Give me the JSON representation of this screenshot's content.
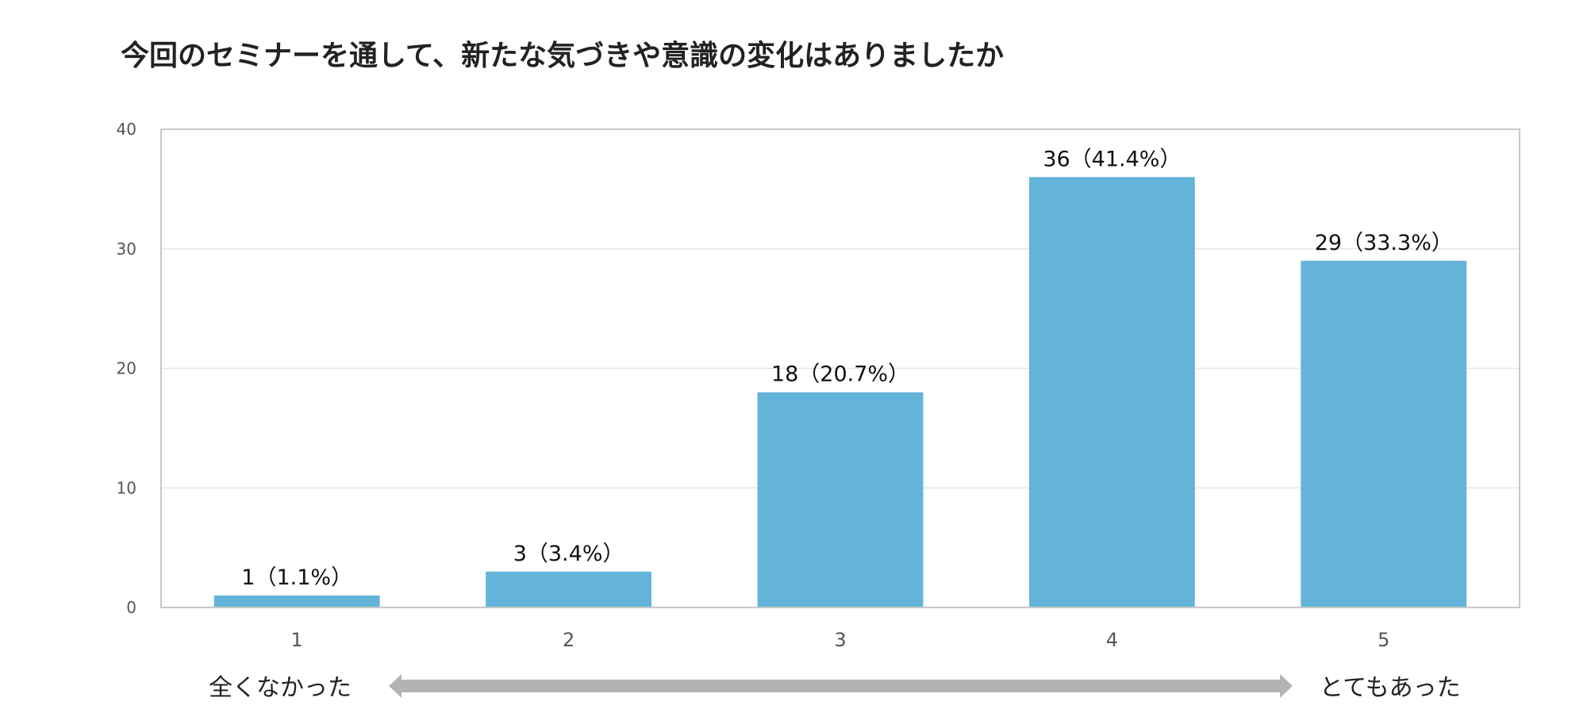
{
  "chart_data": {
    "type": "bar",
    "title": "今回のセミナーを通して、新たな気づきや意識の変化はありましたか",
    "categories": [
      "1",
      "2",
      "3",
      "4",
      "5"
    ],
    "values": [
      1,
      3,
      18,
      36,
      29
    ],
    "percentages": [
      "1.1%",
      "3.4%",
      "20.7%",
      "41.4%",
      "33.3%"
    ],
    "data_labels": [
      "1（1.1%）",
      "3（3.4%）",
      "18（20.7%）",
      "36（41.4%）",
      "29（33.3%）"
    ],
    "ylim": [
      0,
      40
    ],
    "yticks": [
      "0",
      "10",
      "20",
      "30",
      "40"
    ],
    "grid": true,
    "legend": "none",
    "bar_color": "#63b4d8",
    "scale_low_label": "全くなかった",
    "scale_high_label": "とてもあった",
    "arrow_color": "#b3b3b3"
  }
}
